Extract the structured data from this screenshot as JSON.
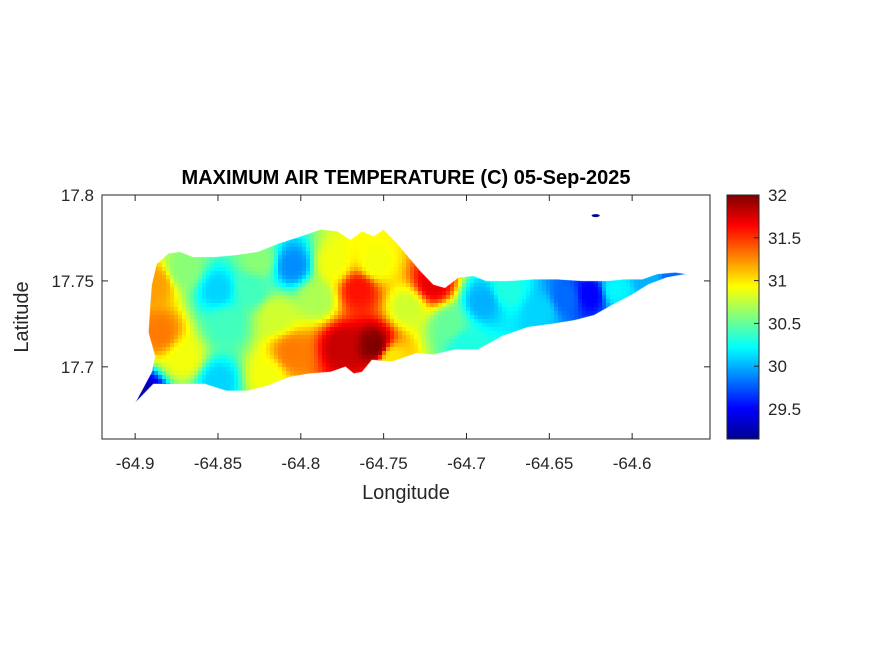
{
  "chart_data": {
    "type": "heatmap",
    "title": "MAXIMUM AIR TEMPERATURE (C) 05-Sep-2025",
    "xlabel": "Longitude",
    "ylabel": "Latitude",
    "xlim": [
      -64.92,
      -64.553
    ],
    "ylim": [
      17.658,
      17.8
    ],
    "x_ticks": [
      -64.9,
      -64.85,
      -64.8,
      -64.75,
      -64.7,
      -64.65,
      -64.6
    ],
    "x_tick_labels": [
      "-64.9",
      "-64.85",
      "-64.8",
      "-64.75",
      "-64.7",
      "-64.65",
      "-64.6"
    ],
    "y_ticks": [
      17.7,
      17.75,
      17.8
    ],
    "y_tick_labels": [
      "17.7",
      "17.75",
      "17.8"
    ],
    "colormap": "jet",
    "colorbar": {
      "range": [
        29.15,
        32
      ],
      "ticks": [
        29.5,
        30,
        30.5,
        31,
        31.5,
        32
      ],
      "tick_labels": [
        "29.5",
        "30",
        "30.5",
        "31",
        "31.5",
        "32"
      ]
    },
    "grid": false,
    "island_outline": [
      [
        -64.9,
        17.679
      ],
      [
        -64.896,
        17.683
      ],
      [
        -64.889,
        17.69
      ],
      [
        -64.878,
        17.69
      ],
      [
        -64.868,
        17.69
      ],
      [
        -64.858,
        17.69
      ],
      [
        -64.845,
        17.686
      ],
      [
        -64.832,
        17.686
      ],
      [
        -64.82,
        17.689
      ],
      [
        -64.807,
        17.694
      ],
      [
        -64.795,
        17.696
      ],
      [
        -64.782,
        17.697
      ],
      [
        -64.773,
        17.7
      ],
      [
        -64.768,
        17.696
      ],
      [
        -64.763,
        17.697
      ],
      [
        -64.757,
        17.704
      ],
      [
        -64.745,
        17.703
      ],
      [
        -64.73,
        17.708
      ],
      [
        -64.72,
        17.707
      ],
      [
        -64.707,
        17.71
      ],
      [
        -64.693,
        17.71
      ],
      [
        -64.678,
        17.718
      ],
      [
        -64.663,
        17.723
      ],
      [
        -64.648,
        17.725
      ],
      [
        -64.635,
        17.727
      ],
      [
        -64.623,
        17.73
      ],
      [
        -64.612,
        17.736
      ],
      [
        -64.6,
        17.742
      ],
      [
        -64.59,
        17.748
      ],
      [
        -64.579,
        17.752
      ],
      [
        -64.567,
        17.754
      ],
      [
        -64.574,
        17.755
      ],
      [
        -64.585,
        17.754
      ],
      [
        -64.594,
        17.751
      ],
      [
        -64.605,
        17.751
      ],
      [
        -64.615,
        17.75
      ],
      [
        -64.63,
        17.75
      ],
      [
        -64.645,
        17.751
      ],
      [
        -64.66,
        17.751
      ],
      [
        -64.675,
        17.75
      ],
      [
        -64.688,
        17.75
      ],
      [
        -64.696,
        17.753
      ],
      [
        -64.705,
        17.752
      ],
      [
        -64.713,
        17.746
      ],
      [
        -64.72,
        17.748
      ],
      [
        -64.728,
        17.756
      ],
      [
        -64.735,
        17.764
      ],
      [
        -64.742,
        17.772
      ],
      [
        -64.75,
        17.78
      ],
      [
        -64.756,
        17.776
      ],
      [
        -64.763,
        17.779
      ],
      [
        -64.77,
        17.774
      ],
      [
        -64.778,
        17.779
      ],
      [
        -64.788,
        17.78
      ],
      [
        -64.8,
        17.776
      ],
      [
        -64.813,
        17.772
      ],
      [
        -64.826,
        17.767
      ],
      [
        -64.84,
        17.765
      ],
      [
        -64.852,
        17.764
      ],
      [
        -64.865,
        17.764
      ],
      [
        -64.873,
        17.767
      ],
      [
        -64.88,
        17.766
      ],
      [
        -64.887,
        17.76
      ],
      [
        -64.89,
        17.748
      ],
      [
        -64.891,
        17.735
      ],
      [
        -64.892,
        17.72
      ],
      [
        -64.888,
        17.706
      ],
      [
        -64.89,
        17.697
      ],
      [
        -64.895,
        17.688
      ],
      [
        -64.9,
        17.679
      ]
    ],
    "islet": [
      -64.622,
      17.788
    ],
    "temperature_anchors": [
      {
        "lon": -64.888,
        "lat": 17.748,
        "t": 31.2
      },
      {
        "lon": -64.885,
        "lat": 17.72,
        "t": 31.3
      },
      {
        "lon": -64.87,
        "lat": 17.705,
        "t": 30.9
      },
      {
        "lon": -64.87,
        "lat": 17.757,
        "t": 30.6
      },
      {
        "lon": -64.85,
        "lat": 17.745,
        "t": 30.1
      },
      {
        "lon": -64.845,
        "lat": 17.725,
        "t": 30.4
      },
      {
        "lon": -64.85,
        "lat": 17.692,
        "t": 30.1
      },
      {
        "lon": -64.83,
        "lat": 17.745,
        "t": 30.4
      },
      {
        "lon": -64.825,
        "lat": 17.762,
        "t": 30.6
      },
      {
        "lon": -64.805,
        "lat": 17.759,
        "t": 29.9
      },
      {
        "lon": -64.815,
        "lat": 17.73,
        "t": 30.8
      },
      {
        "lon": -64.805,
        "lat": 17.708,
        "t": 31.3
      },
      {
        "lon": -64.79,
        "lat": 17.74,
        "t": 30.7
      },
      {
        "lon": -64.78,
        "lat": 17.76,
        "t": 30.9
      },
      {
        "lon": -64.775,
        "lat": 17.712,
        "t": 31.8
      },
      {
        "lon": -64.765,
        "lat": 17.745,
        "t": 31.6
      },
      {
        "lon": -64.755,
        "lat": 17.712,
        "t": 32.0
      },
      {
        "lon": -64.755,
        "lat": 17.76,
        "t": 30.9
      },
      {
        "lon": -64.735,
        "lat": 17.735,
        "t": 30.8
      },
      {
        "lon": -64.72,
        "lat": 17.748,
        "t": 31.7
      },
      {
        "lon": -64.71,
        "lat": 17.725,
        "t": 30.5
      },
      {
        "lon": -64.69,
        "lat": 17.738,
        "t": 30.0
      },
      {
        "lon": -64.675,
        "lat": 17.745,
        "t": 30.3
      },
      {
        "lon": -64.655,
        "lat": 17.733,
        "t": 30.1
      },
      {
        "lon": -64.64,
        "lat": 17.74,
        "t": 29.8
      },
      {
        "lon": -64.625,
        "lat": 17.742,
        "t": 29.5
      },
      {
        "lon": -64.61,
        "lat": 17.745,
        "t": 30.2
      },
      {
        "lon": -64.59,
        "lat": 17.752,
        "t": 30.0
      },
      {
        "lon": -64.575,
        "lat": 17.754,
        "t": 29.8
      },
      {
        "lon": -64.895,
        "lat": 17.683,
        "t": 29.3
      },
      {
        "lon": -64.82,
        "lat": 17.695,
        "t": 30.9
      },
      {
        "lon": -64.7,
        "lat": 17.713,
        "t": 30.3
      },
      {
        "lon": -64.745,
        "lat": 17.705,
        "t": 31.0
      }
    ]
  }
}
